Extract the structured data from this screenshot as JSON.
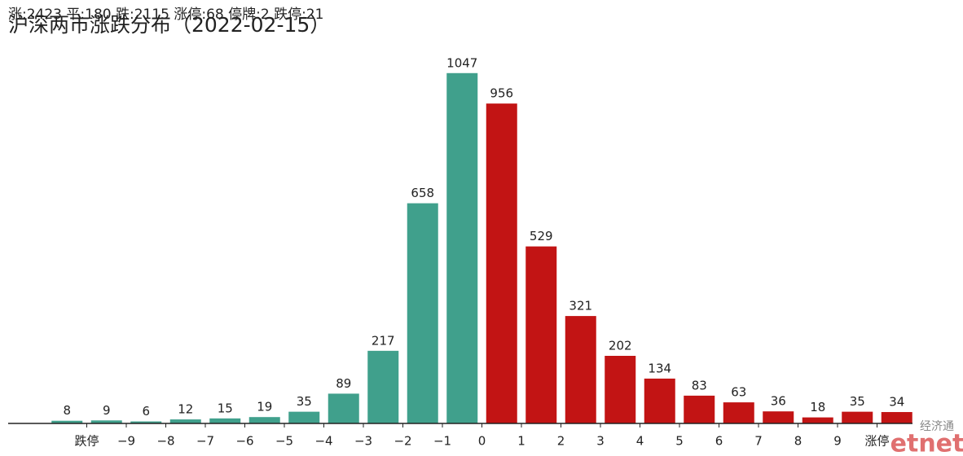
{
  "chart_data": {
    "type": "bar",
    "title": "沪深两市涨跌分布（2022-02-15）",
    "subtitle": "涨:2423 平:180 跌:2115 涨停:68 停牌:2 跌停:21",
    "watermark": [
      "经济通",
      "etnet"
    ],
    "values": [
      8,
      9,
      6,
      12,
      15,
      19,
      35,
      89,
      217,
      658,
      1047,
      956,
      529,
      321,
      202,
      134,
      83,
      63,
      36,
      18,
      35,
      34
    ],
    "colors": [
      "#40a08c",
      "#40a08c",
      "#40a08c",
      "#40a08c",
      "#40a08c",
      "#40a08c",
      "#40a08c",
      "#40a08c",
      "#40a08c",
      "#40a08c",
      "#40a08c",
      "#c21414",
      "#c21414",
      "#c21414",
      "#c21414",
      "#c21414",
      "#c21414",
      "#c21414",
      "#c21414",
      "#c21414",
      "#c21414",
      "#c21414"
    ],
    "tick_labels": [
      "跌停",
      "−9",
      "−8",
      "−7",
      "−6",
      "−5",
      "−4",
      "−3",
      "−2",
      "−1",
      "0",
      "1",
      "2",
      "3",
      "4",
      "5",
      "6",
      "7",
      "8",
      "9",
      "涨停"
    ],
    "ylim": [
      0,
      1100
    ]
  }
}
